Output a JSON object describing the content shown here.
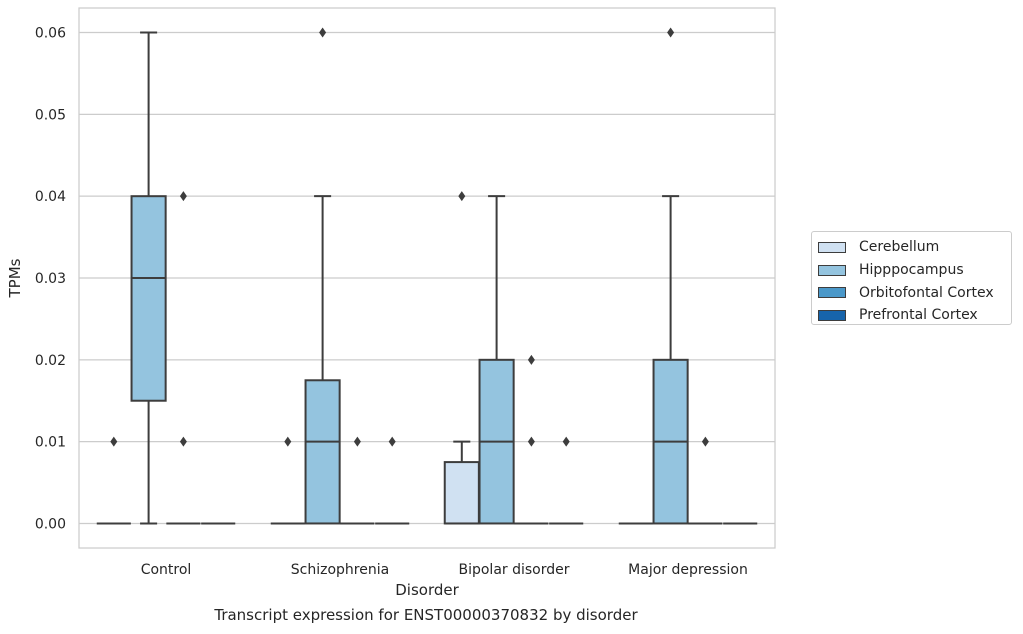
{
  "caption": "Transcript expression for ENST00000370832 by disorder",
  "chart_data": {
    "type": "boxplot",
    "xlabel": "Disorder",
    "ylabel": "TPMs",
    "ylim": [
      -0.003,
      0.063
    ],
    "yticks": [
      "0.00",
      "0.01",
      "0.02",
      "0.03",
      "0.04",
      "0.05",
      "0.06"
    ],
    "grid": true,
    "legend_position": "right",
    "categories": [
      "Control",
      "Schizophrenia",
      "Bipolar disorder",
      "Major depression"
    ],
    "series": [
      {
        "name": "Cerebellum",
        "color": "#d0e1f2",
        "boxes": [
          {
            "q1": 0,
            "median": 0,
            "q3": 0,
            "whisker_low": 0,
            "whisker_high": 0,
            "outliers": [
              0.01
            ]
          },
          {
            "q1": 0,
            "median": 0,
            "q3": 0,
            "whisker_low": 0,
            "whisker_high": 0,
            "outliers": [
              0.01
            ]
          },
          {
            "q1": 0,
            "median": 0,
            "q3": 0.0075,
            "whisker_low": 0,
            "whisker_high": 0.01,
            "outliers": [
              0.04
            ]
          },
          {
            "q1": 0,
            "median": 0,
            "q3": 0,
            "whisker_low": 0,
            "whisker_high": 0,
            "outliers": []
          }
        ]
      },
      {
        "name": "Hipppocampus",
        "color": "#94c4df",
        "boxes": [
          {
            "q1": 0.015,
            "median": 0.03,
            "q3": 0.04,
            "whisker_low": 0,
            "whisker_high": 0.06,
            "outliers": []
          },
          {
            "q1": 0,
            "median": 0.01,
            "q3": 0.0175,
            "whisker_low": 0,
            "whisker_high": 0.04,
            "outliers": [
              0.06
            ]
          },
          {
            "q1": 0,
            "median": 0.01,
            "q3": 0.02,
            "whisker_low": 0,
            "whisker_high": 0.04,
            "outliers": []
          },
          {
            "q1": 0,
            "median": 0.01,
            "q3": 0.02,
            "whisker_low": 0,
            "whisker_high": 0.04,
            "outliers": [
              0.06
            ]
          }
        ]
      },
      {
        "name": "Orbitofontal Cortex",
        "color": "#4a98c9",
        "boxes": [
          {
            "q1": 0,
            "median": 0,
            "q3": 0,
            "whisker_low": 0,
            "whisker_high": 0,
            "outliers": [
              0.01,
              0.04
            ]
          },
          {
            "q1": 0,
            "median": 0,
            "q3": 0,
            "whisker_low": 0,
            "whisker_high": 0,
            "outliers": [
              0.01
            ]
          },
          {
            "q1": 0,
            "median": 0,
            "q3": 0,
            "whisker_low": 0,
            "whisker_high": 0,
            "outliers": [
              0.01,
              0.02
            ]
          },
          {
            "q1": 0,
            "median": 0,
            "q3": 0,
            "whisker_low": 0,
            "whisker_high": 0,
            "outliers": [
              0.01
            ]
          }
        ]
      },
      {
        "name": "Prefrontal Cortex",
        "color": "#1764ab",
        "boxes": [
          {
            "q1": 0,
            "median": 0,
            "q3": 0,
            "whisker_low": 0,
            "whisker_high": 0,
            "outliers": []
          },
          {
            "q1": 0,
            "median": 0,
            "q3": 0,
            "whisker_low": 0,
            "whisker_high": 0,
            "outliers": [
              0.01
            ]
          },
          {
            "q1": 0,
            "median": 0,
            "q3": 0,
            "whisker_low": 0,
            "whisker_high": 0,
            "outliers": [
              0.01
            ]
          },
          {
            "q1": 0,
            "median": 0,
            "q3": 0,
            "whisker_low": 0,
            "whisker_high": 0,
            "outliers": []
          }
        ]
      }
    ]
  }
}
